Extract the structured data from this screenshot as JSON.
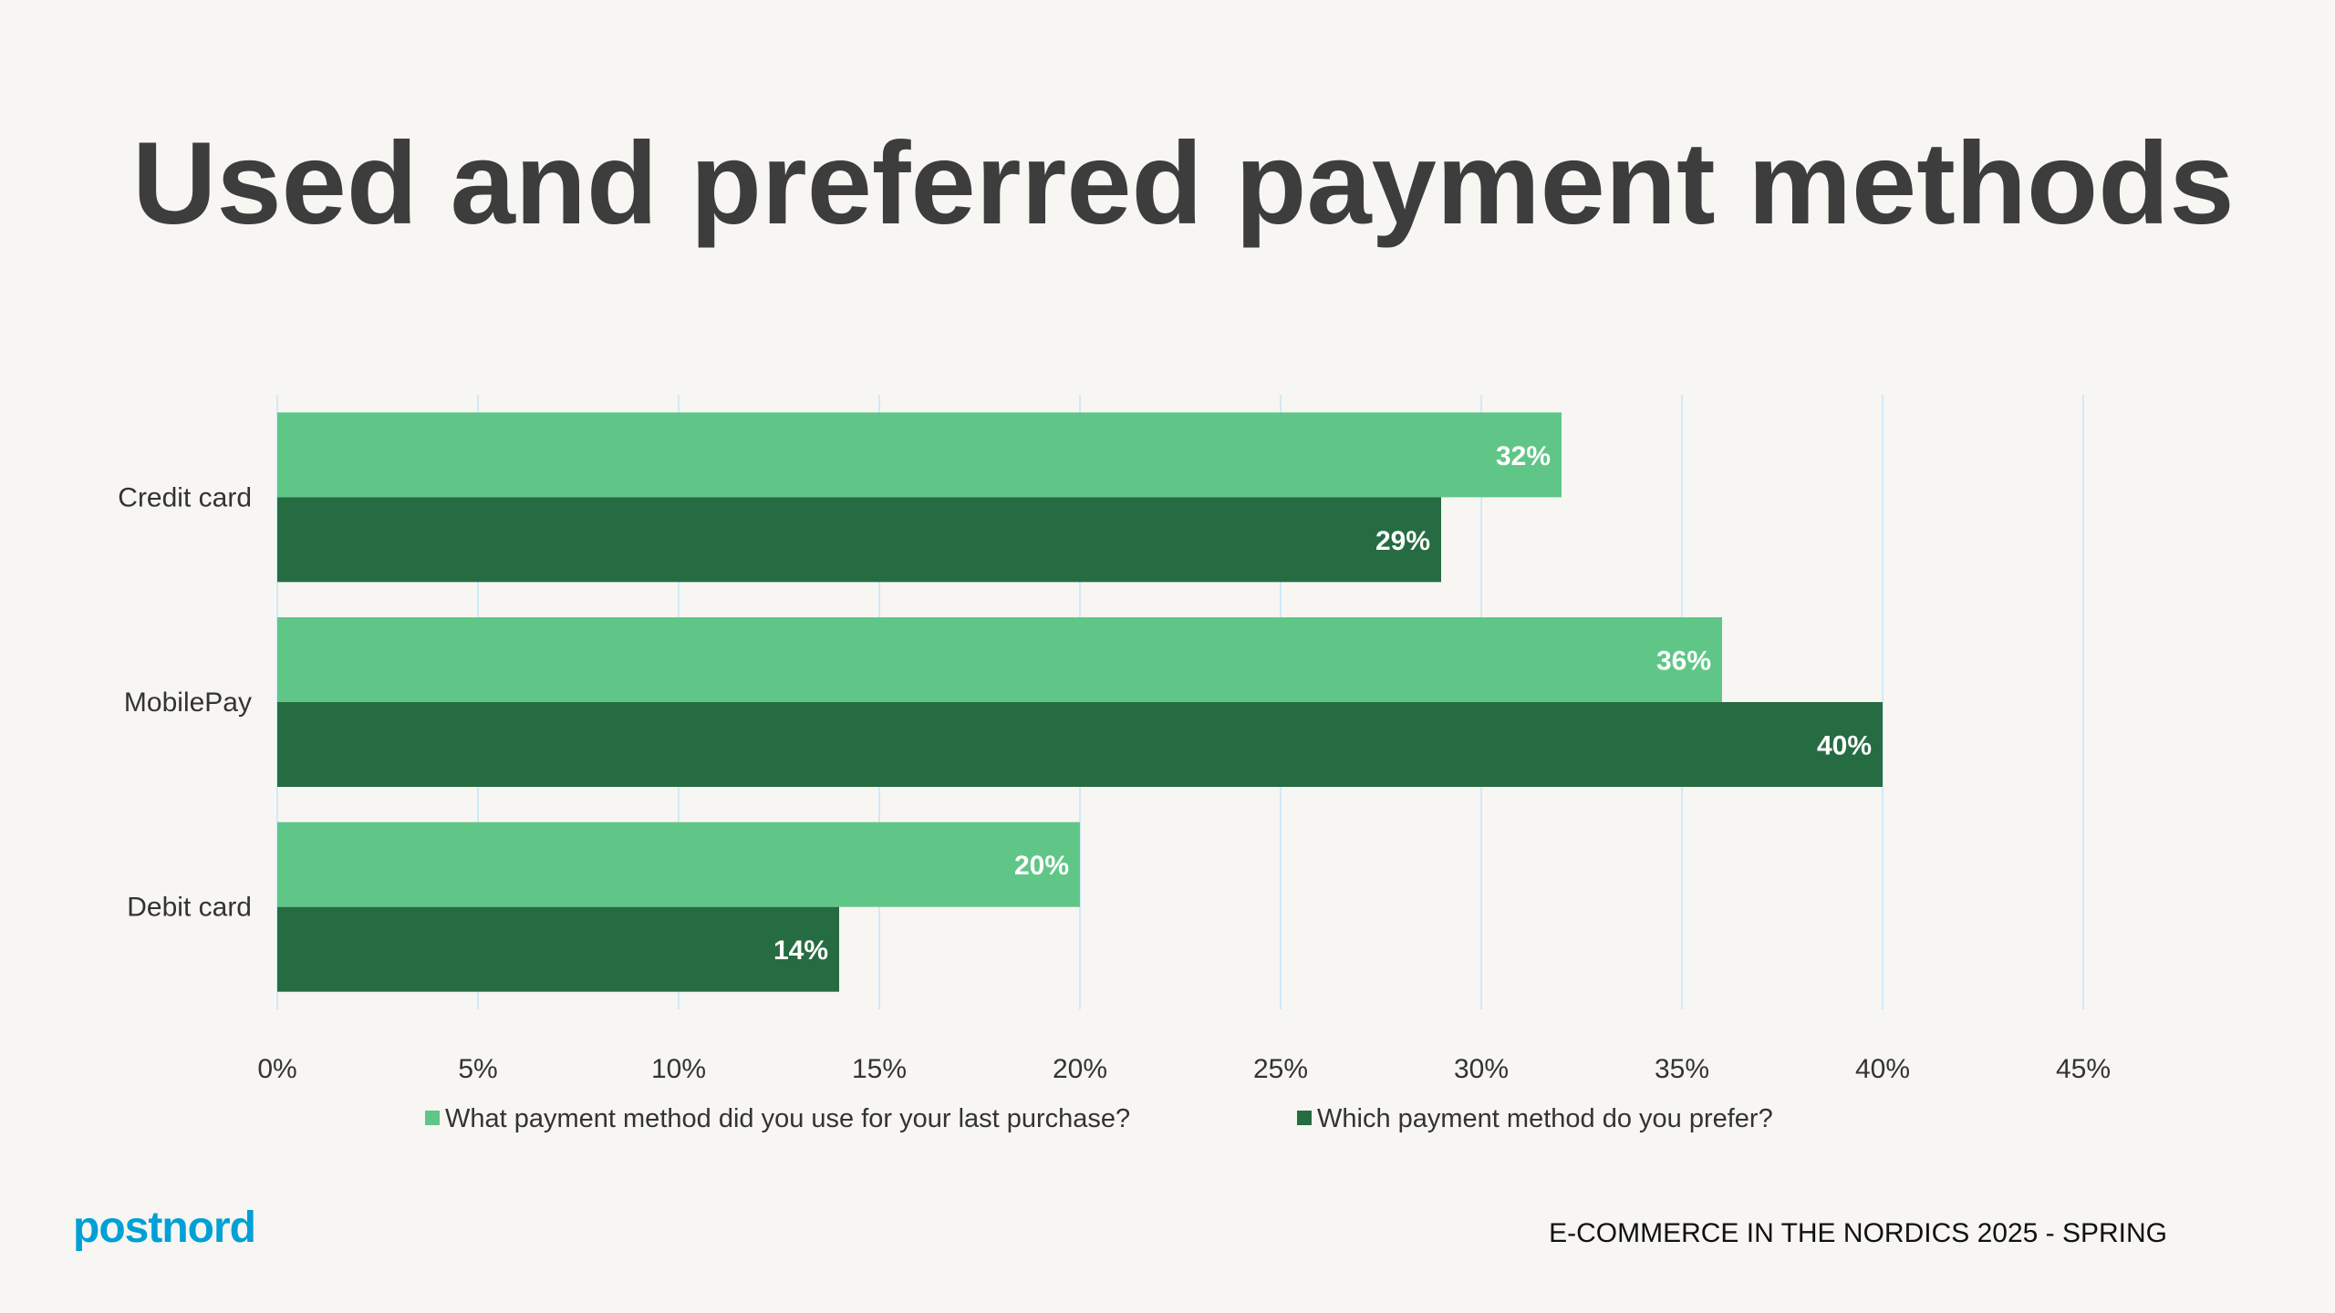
{
  "title": "Used and preferred payment methods",
  "footer": "E-COMMERCE IN THE NORDICS 2025 - SPRING",
  "logo": "postnord",
  "colors": {
    "series1": "#60c687",
    "series2": "#266c42",
    "grid": "#cfeaf8",
    "logo": "#00a0d6"
  },
  "chart_data": {
    "type": "bar",
    "orientation": "horizontal",
    "categories": [
      "Credit card",
      "MobilePay",
      "Debit card"
    ],
    "series": [
      {
        "name": "What payment method did you use for your last purchase?",
        "values": [
          32,
          36,
          20
        ],
        "labels": [
          "32%",
          "36%",
          "20%"
        ]
      },
      {
        "name": "Which payment method do you prefer?",
        "values": [
          29,
          40,
          14
        ],
        "labels": [
          "29%",
          "40%",
          "14%"
        ]
      }
    ],
    "xlim": [
      0,
      45
    ],
    "xticks": [
      "0%",
      "5%",
      "10%",
      "15%",
      "20%",
      "25%",
      "30%",
      "35%",
      "40%",
      "45%"
    ],
    "grid": true,
    "legend": "bottom"
  }
}
